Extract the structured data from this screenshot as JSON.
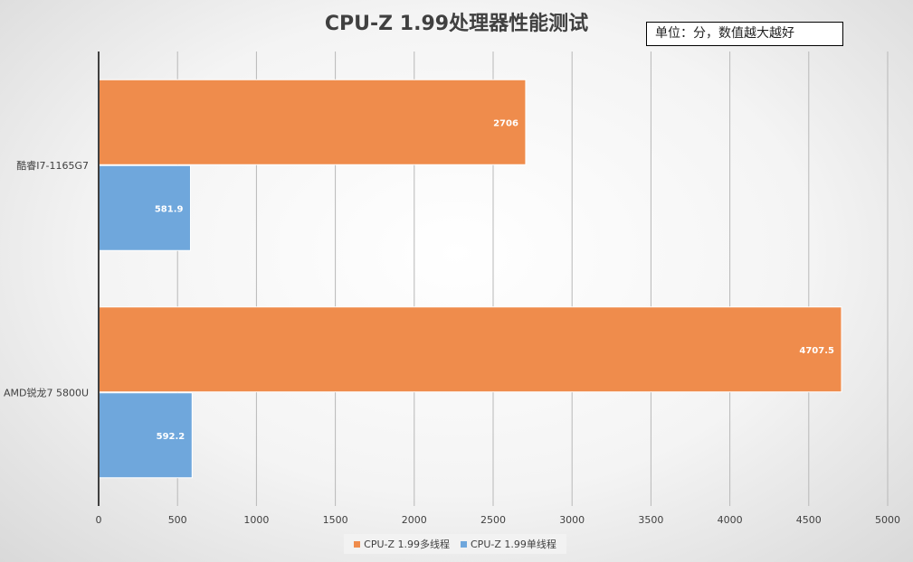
{
  "chart_data": {
    "type": "bar",
    "orientation": "horizontal",
    "title": "CPU-Z 1.99处理器性能测试",
    "unit_note": "单位：分，数值越大越好",
    "categories": [
      "酷睿I7-1165G7",
      "AMD锐龙7 5800U"
    ],
    "series": [
      {
        "name": "CPU-Z 1.99多线程",
        "values": [
          2706,
          4707.5
        ],
        "labels": [
          "2706",
          "4707.5"
        ],
        "color": "#ef8c4c"
      },
      {
        "name": "CPU-Z 1.99单线程",
        "values": [
          581.9,
          592.2
        ],
        "labels": [
          "581.9",
          "592.2"
        ],
        "color": "#6fa7dc"
      }
    ],
    "xlim": [
      0,
      5000
    ],
    "xticks": [
      0,
      500,
      1000,
      1500,
      2000,
      2500,
      3000,
      3500,
      4000,
      4500,
      5000
    ],
    "xtick_labels": [
      "0",
      "500",
      "1000",
      "1500",
      "2000",
      "2500",
      "3000",
      "3500",
      "4000",
      "4500",
      "5000"
    ],
    "grid": true,
    "legend_position": "bottom"
  }
}
